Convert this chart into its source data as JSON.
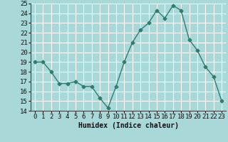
{
  "x": [
    0,
    1,
    2,
    3,
    4,
    5,
    6,
    7,
    8,
    9,
    10,
    11,
    12,
    13,
    14,
    15,
    16,
    17,
    18,
    19,
    20,
    21,
    22,
    23
  ],
  "y": [
    19.0,
    19.0,
    18.0,
    16.8,
    16.8,
    17.0,
    16.5,
    16.5,
    15.3,
    14.3,
    16.5,
    19.0,
    21.0,
    22.3,
    23.0,
    24.3,
    23.5,
    24.8,
    24.3,
    21.3,
    20.2,
    18.5,
    17.5,
    15.0
  ],
  "xlabel": "Humidex (Indice chaleur)",
  "ylim": [
    14,
    25
  ],
  "xlim_min": -0.5,
  "xlim_max": 23.5,
  "yticks": [
    14,
    15,
    16,
    17,
    18,
    19,
    20,
    21,
    22,
    23,
    24,
    25
  ],
  "xticks": [
    0,
    1,
    2,
    3,
    4,
    5,
    6,
    7,
    8,
    9,
    10,
    11,
    12,
    13,
    14,
    15,
    16,
    17,
    18,
    19,
    20,
    21,
    22,
    23
  ],
  "line_color": "#2e7d6e",
  "bg_color": "#a8d8d8",
  "grid_color": "#ffffff",
  "marker": "D",
  "marker_size": 2.5,
  "line_width": 1.0,
  "xlabel_fontsize": 7,
  "tick_fontsize": 6.5,
  "ytick_fontsize": 6.5
}
